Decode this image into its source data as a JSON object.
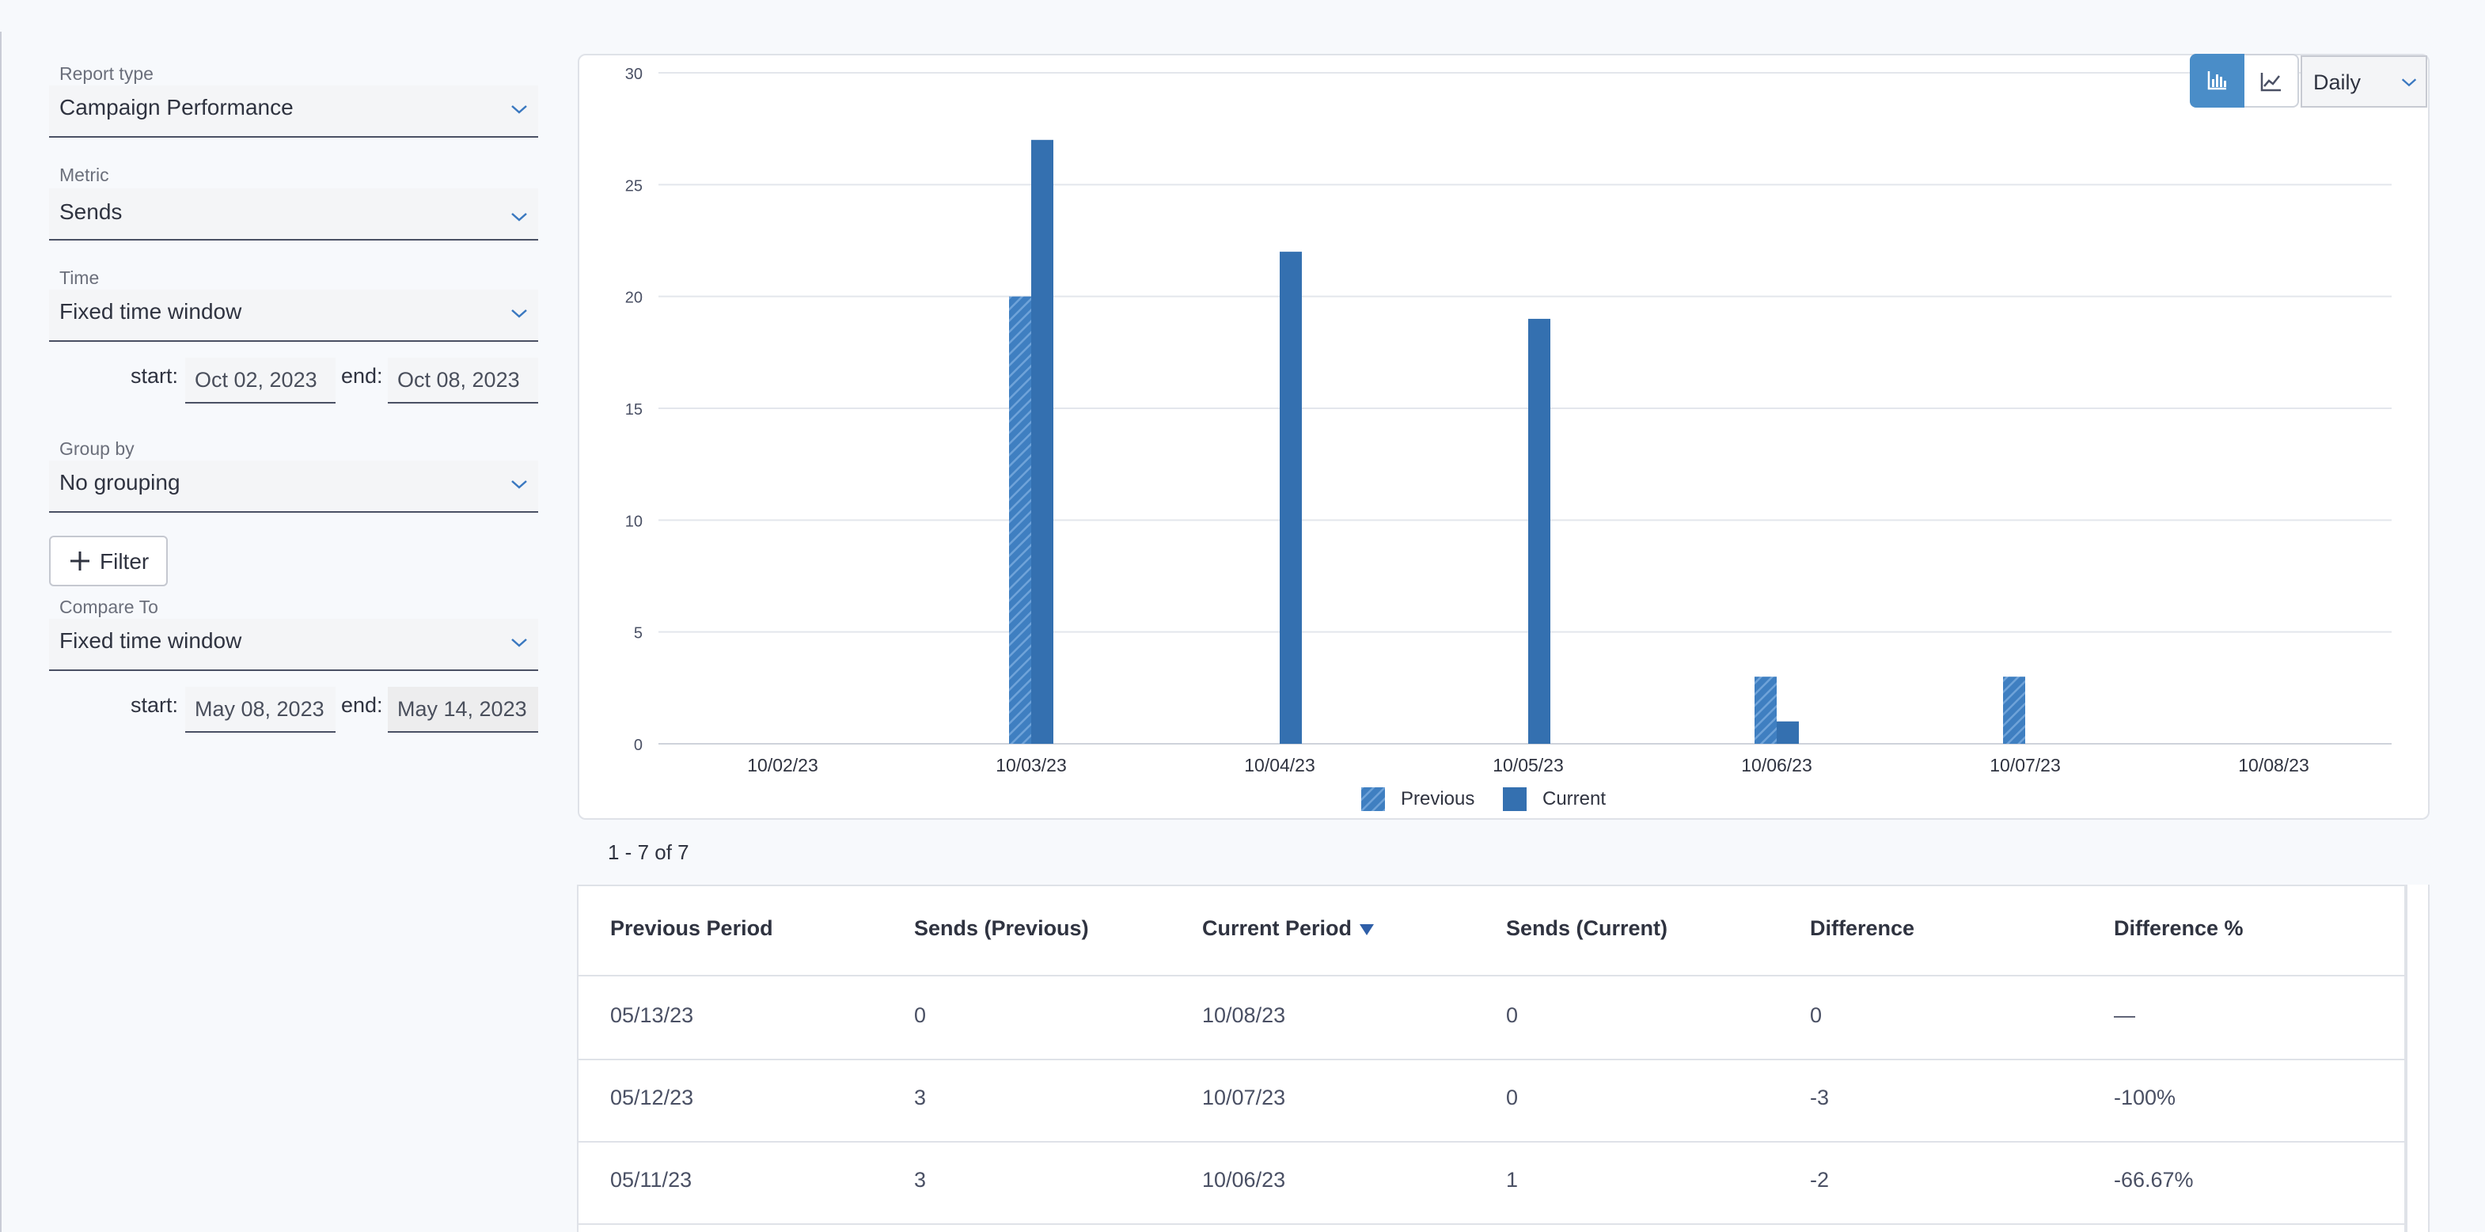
{
  "filters": {
    "report_type": {
      "label": "Report type",
      "value": "Campaign Performance"
    },
    "metric": {
      "label": "Metric",
      "value": "Sends"
    },
    "time": {
      "label": "Time",
      "value": "Fixed time window",
      "start_label": "start:",
      "start": "Oct 02, 2023",
      "end_label": "end:",
      "end": "Oct 08, 2023"
    },
    "group_by": {
      "label": "Group by",
      "value": "No grouping"
    },
    "filter_button": "Filter",
    "compare_to": {
      "label": "Compare To",
      "value": "Fixed time window",
      "start_label": "start:",
      "start": "May 08, 2023",
      "end_label": "end:",
      "end": "May 14, 2023"
    }
  },
  "chart_controls": {
    "period": "Daily",
    "active_view": "bar",
    "icons": {
      "bar_view": "bar-chart-icon",
      "line_view": "line-chart-icon"
    }
  },
  "chart_data": {
    "type": "bar",
    "categories": [
      "10/02/23",
      "10/03/23",
      "10/04/23",
      "10/05/23",
      "10/06/23",
      "10/07/23",
      "10/08/23"
    ],
    "series": [
      {
        "name": "Previous",
        "values": [
          0,
          20,
          0,
          0,
          3,
          3,
          0
        ],
        "color": "#3f7fc1",
        "pattern": "hatched"
      },
      {
        "name": "Current",
        "values": [
          0,
          27,
          22,
          19,
          1,
          0,
          0
        ],
        "color": "#3470b0",
        "pattern": "solid"
      }
    ],
    "ylim": [
      0,
      30
    ],
    "yticks": [
      0,
      5,
      10,
      15,
      20,
      25,
      30
    ],
    "grid": true,
    "legend": "bottom-center"
  },
  "pagination": "1 - 7 of 7",
  "table": {
    "columns": [
      "Previous Period",
      "Sends (Previous)",
      "Current Period",
      "Sends (Current)",
      "Difference",
      "Difference %"
    ],
    "rows": [
      [
        "05/13/23",
        "0",
        "10/08/23",
        "0",
        "0",
        "—"
      ],
      [
        "05/12/23",
        "3",
        "10/07/23",
        "0",
        "-3",
        "-100%"
      ],
      [
        "05/11/23",
        "3",
        "10/06/23",
        "1",
        "-2",
        "-66.67%"
      ]
    ]
  }
}
